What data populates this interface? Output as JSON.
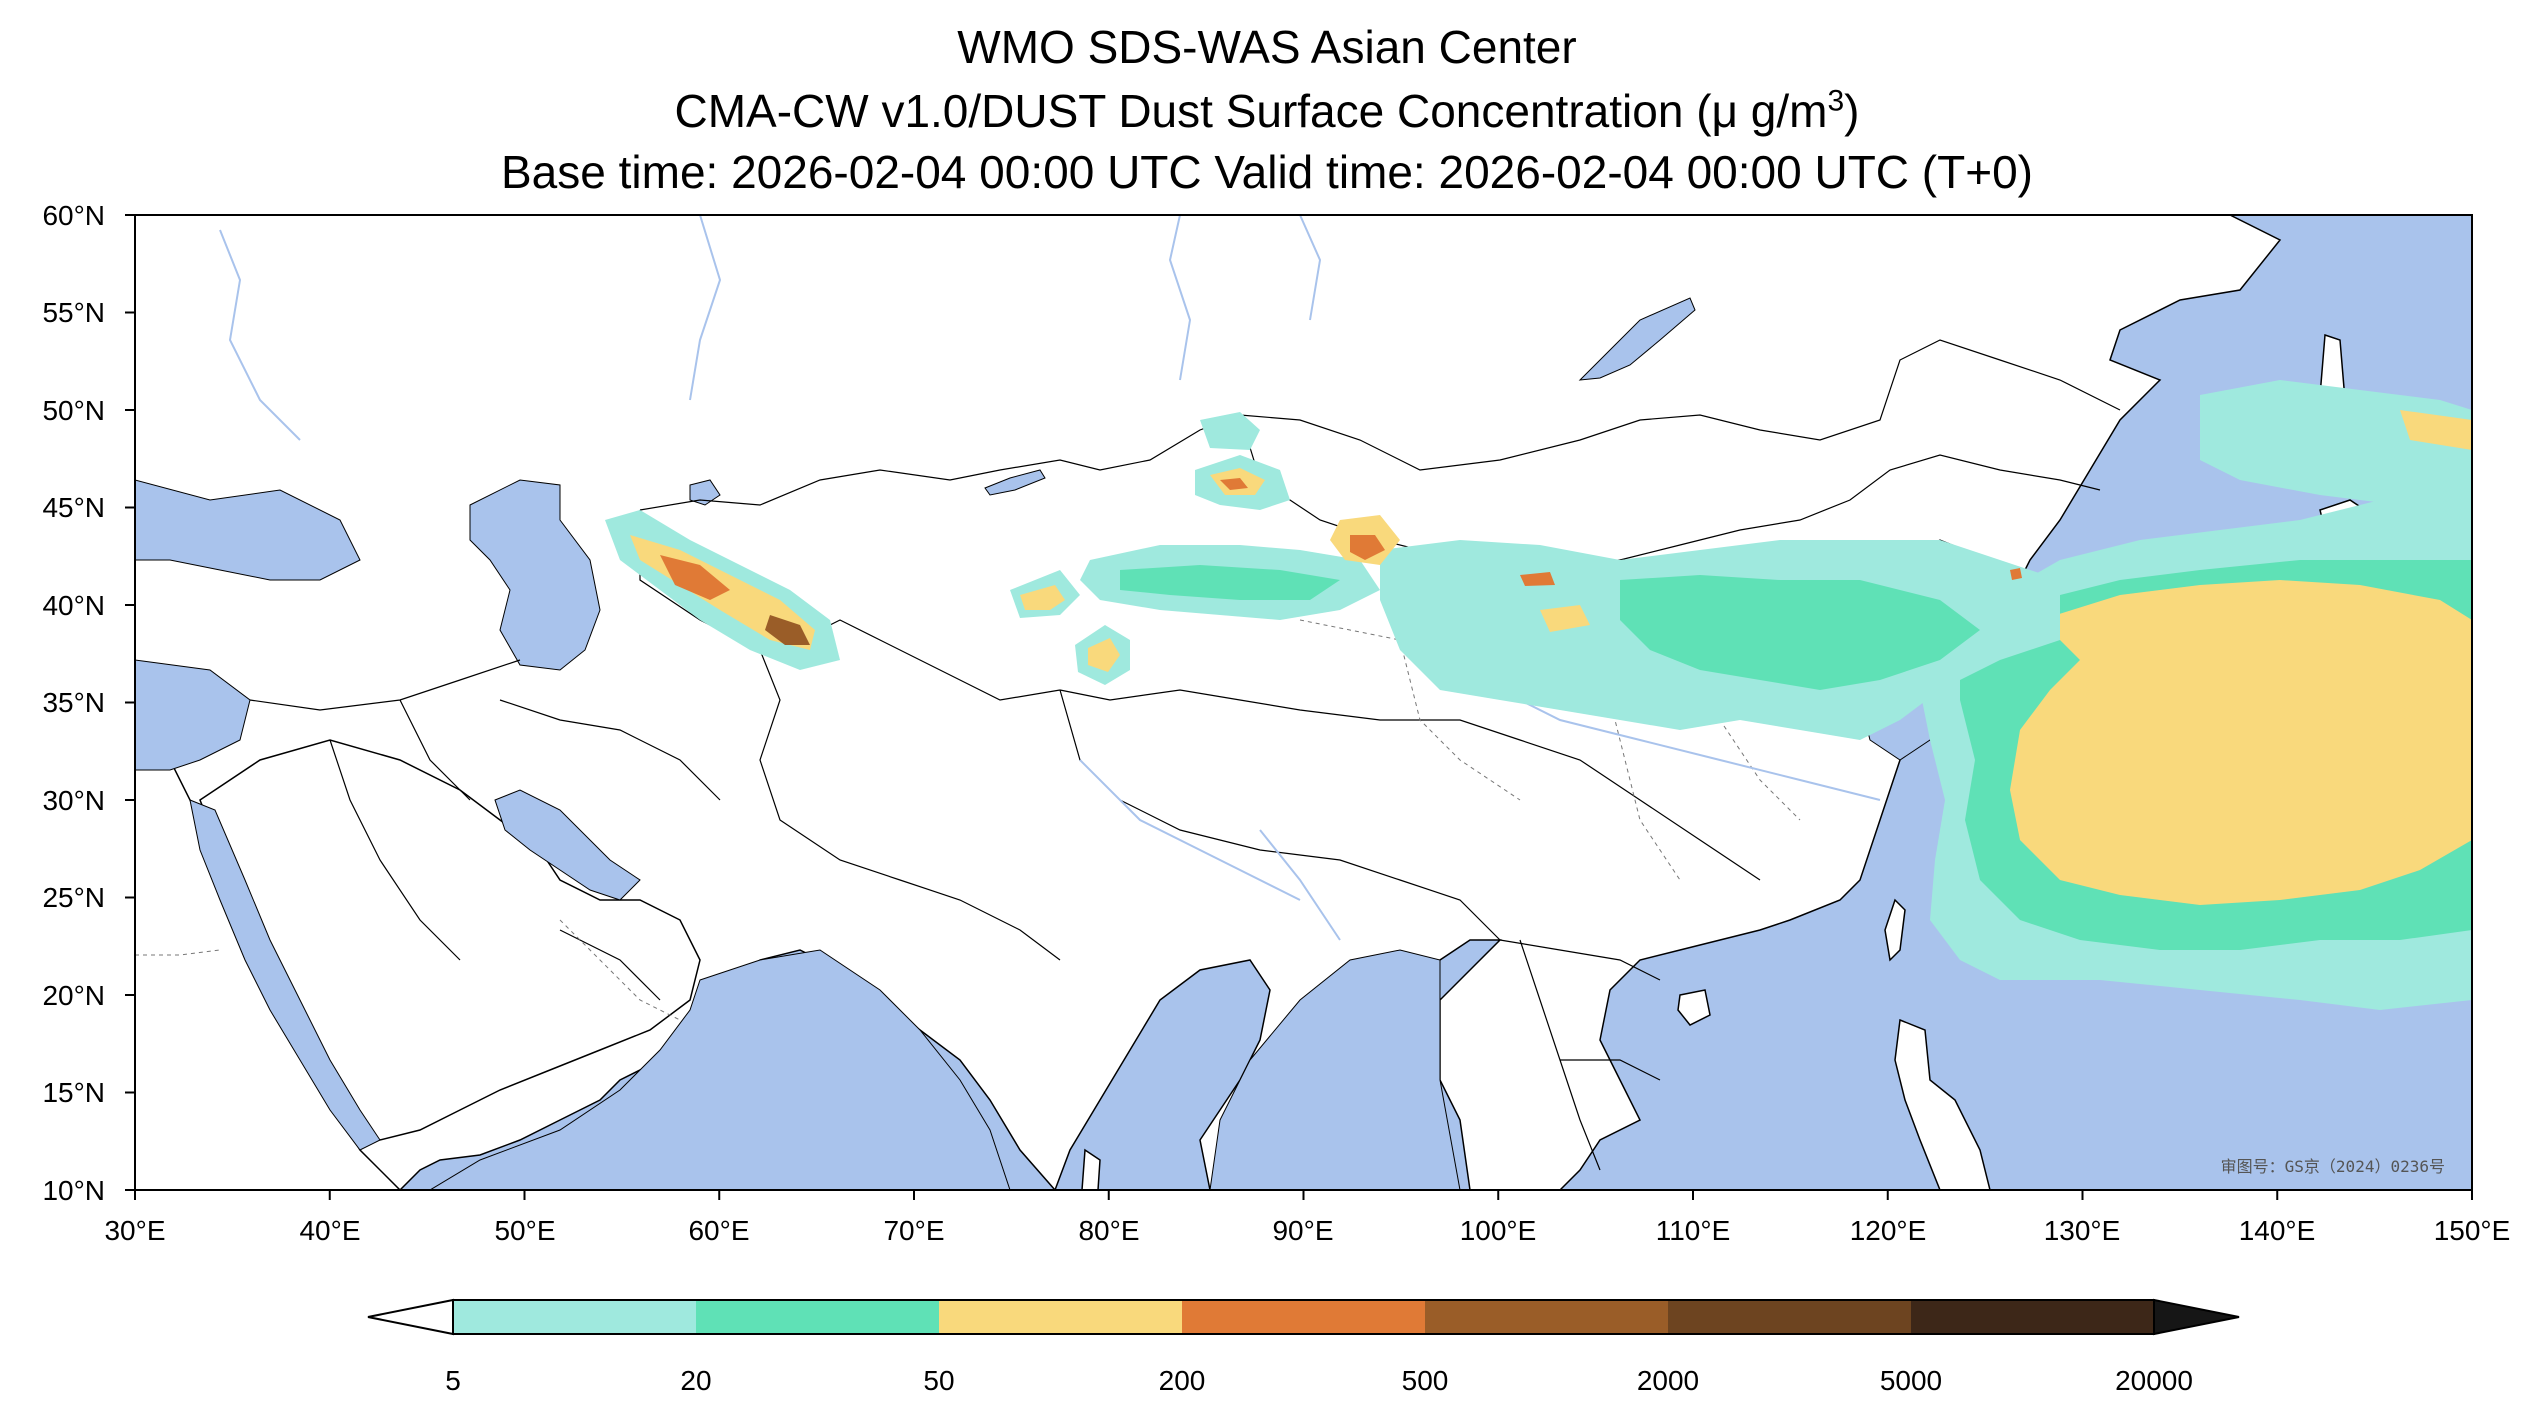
{
  "header": {
    "title_line1": "WMO SDS-WAS Asian Center",
    "title_line2_prefix": "CMA-CW v1.0/DUST Dust Surface Concentration (",
    "title_line2_unit": "μ g/m",
    "title_line2_sup": "3",
    "title_line2_suffix": ")",
    "title_line3": "Base time: 2026-02-04 00:00 UTC Valid time: 2026-02-04 00:00 UTC (T+0)"
  },
  "map": {
    "lon_ticks": [
      "30°E",
      "40°E",
      "50°E",
      "60°E",
      "70°E",
      "80°E",
      "90°E",
      "100°E",
      "110°E",
      "120°E",
      "130°E",
      "140°E",
      "150°E"
    ],
    "lat_ticks": [
      "60°N",
      "55°N",
      "50°N",
      "45°N",
      "40°N",
      "35°N",
      "30°N",
      "25°N",
      "20°N",
      "15°N",
      "10°N"
    ],
    "extent": {
      "lon": [
        30,
        150
      ],
      "lat": [
        10,
        60
      ]
    },
    "review_number": "审图号：GS京（2024）0236号",
    "colors": {
      "ocean": "#a9c3ec",
      "land": "#ffffff",
      "border": "#000000",
      "river": "#a9c3ec"
    }
  },
  "colorbar": {
    "levels": [
      "5",
      "20",
      "50",
      "200",
      "500",
      "2000",
      "5000",
      "20000"
    ],
    "colors": [
      "#9fe9de",
      "#5fe1b6",
      "#f9d97c",
      "#e07a36",
      "#9a5d28",
      "#6d4420",
      "#3d2718",
      "#161616"
    ],
    "extend": "both"
  }
}
